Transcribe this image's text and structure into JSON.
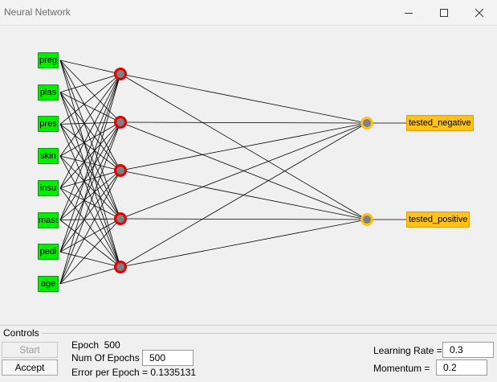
{
  "window": {
    "title": "Neural Network"
  },
  "network": {
    "inputs": [
      "preg",
      "plas",
      "pres",
      "skin",
      "insu",
      "mass",
      "pedi",
      "age"
    ],
    "hidden_count": 5,
    "outputs": [
      "tested_negative",
      "tested_positive"
    ],
    "colors": {
      "input_fill": "#00ee00",
      "hidden_fill": "#808080",
      "hidden_ring": "#e00000",
      "output_fill": "#808080",
      "output_ring": "#ffc21a",
      "output_label_fill": "#ffc21a",
      "edge": "#000000"
    }
  },
  "controls": {
    "group_label": "Controls",
    "start_label": "Start",
    "accept_label": "Accept",
    "epoch_label": "Epoch",
    "epoch_value": "500",
    "num_epochs_label": "Num Of Epochs",
    "num_epochs_value": "500",
    "error_label": "Error per Epoch = 0.1335131",
    "learning_rate_label": "Learning Rate =",
    "learning_rate_value": "0.3",
    "momentum_label": "Momentum =",
    "momentum_value": "0.2"
  },
  "icons": {
    "minimize": "minimize-icon",
    "maximize": "maximize-icon",
    "close": "close-icon"
  }
}
